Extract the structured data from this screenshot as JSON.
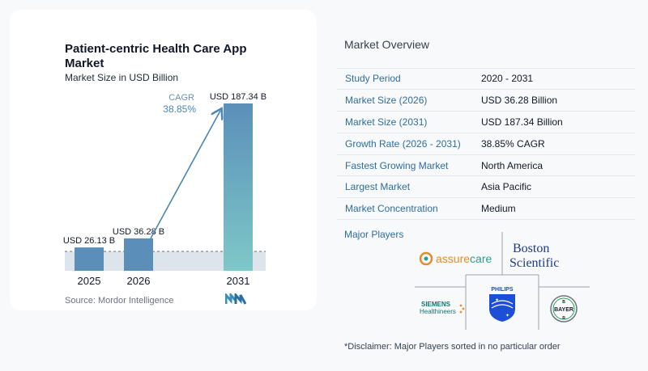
{
  "chart_data": {
    "type": "bar",
    "title": "Patient-centric Health Care App Market",
    "subtitle": "Market Size in USD Billion",
    "categories": [
      "2025",
      "2026",
      "2031"
    ],
    "values": [
      26.13,
      36.28,
      187.34
    ],
    "data_labels": [
      "USD 26.13 B",
      "USD 36.28 B",
      "USD 187.34 B"
    ],
    "cagr_label": "CAGR",
    "cagr_value": "38.85%",
    "colors": {
      "bar_2025": "#5b8fb9",
      "bar_2026": "#5b8fb9",
      "bar_2031_top": "#5b8fb9",
      "bar_2031_bottom": "#7ec8c8",
      "arrow": "#4a86b5",
      "baseband": "#dde4ec"
    }
  },
  "source": "Source:  Mordor Intelligence",
  "overview": {
    "title": "Market Overview",
    "rows": [
      {
        "label": "Study Period",
        "value": "2020 - 2031"
      },
      {
        "label": "Market Size (2026)",
        "value": "USD 36.28 Billion"
      },
      {
        "label": "Market Size (2031)",
        "value": "USD 187.34 Billion"
      },
      {
        "label": "Growth Rate (2026 - 2031)",
        "value": "38.85% CAGR"
      },
      {
        "label": "Fastest Growing Market",
        "value": "North America"
      },
      {
        "label": "Largest Market",
        "value": "Asia Pacific"
      },
      {
        "label": "Market Concentration",
        "value": "Medium"
      }
    ]
  },
  "major_players": {
    "title": "Major Players",
    "logos": [
      "assurecare",
      "Boston Scientific",
      "SIEMENS Healthineers",
      "PHILIPS",
      "BAYER"
    ]
  },
  "disclaimer": "*Disclaimer: Major Players sorted in no particular order"
}
